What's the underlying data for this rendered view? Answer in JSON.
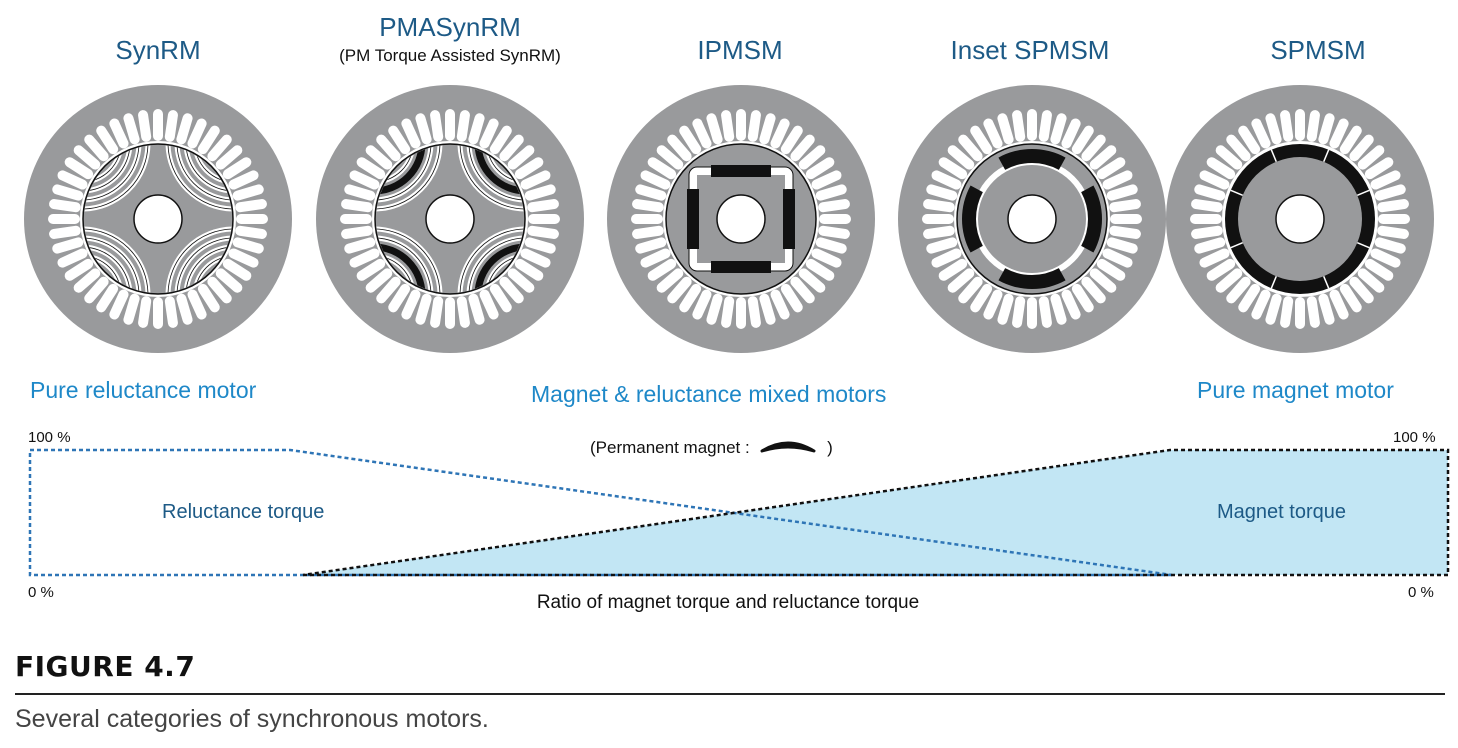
{
  "motors": [
    {
      "name": "SynRM",
      "subtitle": "",
      "type": "synrm"
    },
    {
      "name": "PMASynRM",
      "subtitle": "(PM Torque Assisted SynRM)",
      "type": "pmasynrm"
    },
    {
      "name": "IPMSM",
      "subtitle": "",
      "type": "ipmsm"
    },
    {
      "name": "Inset SPMSM",
      "subtitle": "",
      "type": "inset"
    },
    {
      "name": "SPMSM",
      "subtitle": "",
      "type": "spmsm"
    }
  ],
  "categories": {
    "left": "Pure reluctance motor",
    "middle": "Magnet & reluctance mixed motors",
    "right": "Pure magnet motor"
  },
  "legend": {
    "prefix": "(Permanent magnet :",
    "suffix": ")"
  },
  "ratio_chart": {
    "top_left_label": "100 %",
    "top_right_label": "100 %",
    "bottom_left_label": "0 %",
    "bottom_right_label": "0 %",
    "reluctance_label": "Reluctance torque",
    "magnet_label": "Magnet torque",
    "axis_label": "Ratio of magnet torque and reluctance torque"
  },
  "colors": {
    "stator": "#999a9c",
    "title_blue": "#1d5a86",
    "category_blue": "#1e88c8",
    "magnet_fill": "#c2e6f4",
    "reluctance_line": "#2e75b6"
  },
  "figure": {
    "label": "FIGURE 4.7",
    "caption": "Several categories of synchronous motors."
  }
}
